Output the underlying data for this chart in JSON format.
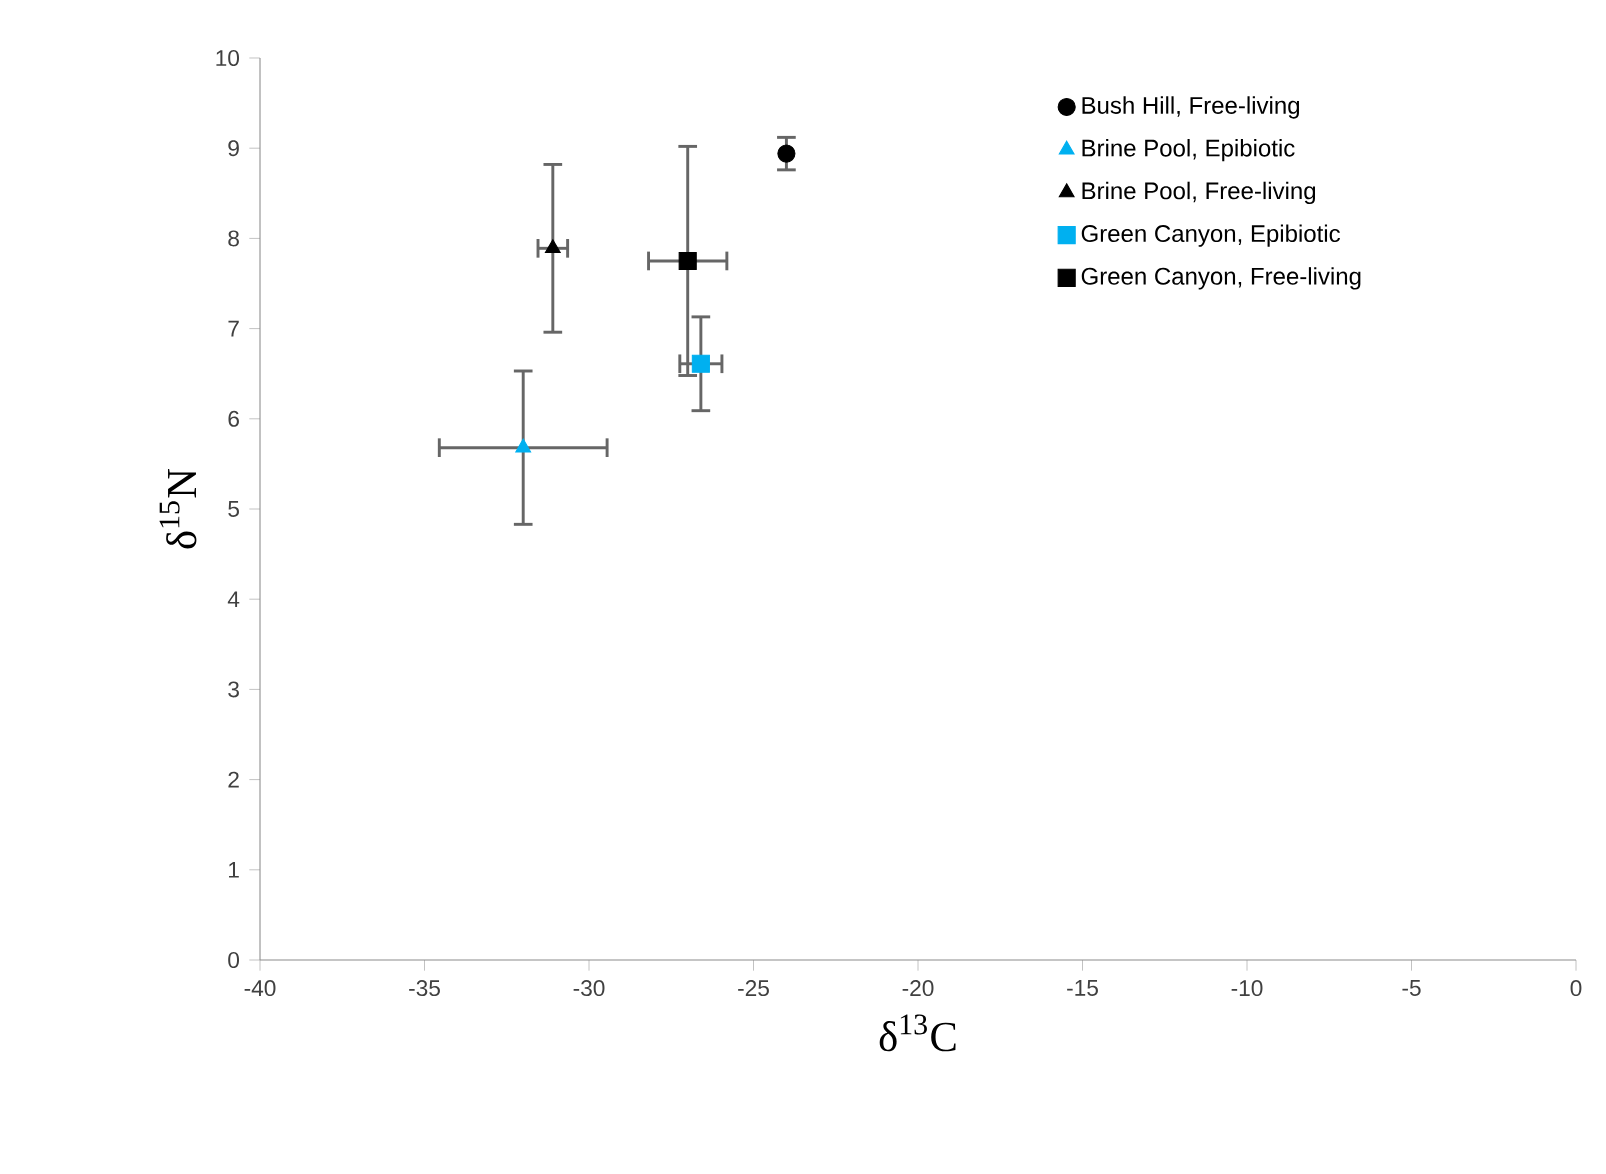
{
  "chart_data": {
    "type": "scatter",
    "xlabel": "δ$^{13}$C",
    "ylabel": "δ$^{15}$N",
    "xlim": [
      -40,
      0
    ],
    "xticks": [
      -40,
      -35,
      -30,
      -25,
      -20,
      -15,
      -10,
      -5,
      0
    ],
    "ylim": [
      0,
      10
    ],
    "yticks": [
      0,
      1,
      2,
      3,
      4,
      5,
      6,
      7,
      8,
      9,
      10
    ],
    "grid": false,
    "legend": "top right",
    "series": [
      {
        "name": "Bush Hill, Free-living",
        "color": "#000000",
        "marker": "circle",
        "x": [
          -24.0
        ],
        "values": [
          8.94
        ],
        "errors": [
          0.18
        ]
      },
      {
        "name": "Brine Pool, Epibiotic",
        "color": "#00b0f0",
        "marker": "triangle",
        "x": [
          -32.0
        ],
        "values": [
          5.68
        ],
        "errors": [
          0.85
        ],
        "xerrors": [
          2.55
        ]
      },
      {
        "name": "Brine Pool, Free-living",
        "color": "#000000",
        "marker": "triangle",
        "x": [
          -31.1
        ],
        "values": [
          7.89
        ],
        "errors": [
          0.93
        ],
        "xerrors": [
          0.45
        ]
      },
      {
        "name": "Green Canyon, Epibiotic",
        "color": "#00b0f0",
        "marker": "square",
        "x": [
          -26.6
        ],
        "values": [
          6.61
        ],
        "errors": [
          0.52
        ],
        "xerrors": [
          0.64
        ]
      },
      {
        "name": "Green Canyon, Free-living",
        "color": "#000000",
        "marker": "square",
        "x": [
          -27.0
        ],
        "values": [
          7.75
        ],
        "errors": [
          1.27
        ],
        "xerrors": [
          1.19
        ]
      }
    ]
  }
}
